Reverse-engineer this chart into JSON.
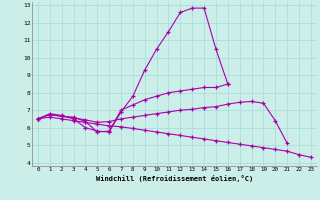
{
  "xlabel": "Windchill (Refroidissement éolien,°C)",
  "background_color": "#cceee8",
  "grid_color": "#aadddd",
  "line_color": "#aa00aa",
  "x_hours": [
    0,
    1,
    2,
    3,
    4,
    5,
    6,
    7,
    8,
    9,
    10,
    11,
    12,
    13,
    14,
    15,
    16,
    17,
    18,
    19,
    20,
    21,
    22,
    23
  ],
  "line1": [
    6.5,
    6.8,
    6.7,
    6.5,
    6.0,
    5.8,
    5.75,
    6.9,
    7.8,
    9.3,
    10.5,
    11.5,
    12.6,
    12.85,
    12.85,
    10.5,
    8.5,
    null,
    null,
    null,
    null,
    null,
    null,
    null
  ],
  "line2": [
    6.5,
    6.75,
    6.65,
    6.6,
    6.35,
    5.75,
    5.8,
    7.0,
    7.3,
    7.6,
    7.8,
    8.0,
    8.1,
    8.2,
    8.3,
    8.3,
    8.5,
    null,
    null,
    null,
    null,
    null,
    null,
    null
  ],
  "line3": [
    6.5,
    6.75,
    6.65,
    6.55,
    6.45,
    6.3,
    6.35,
    6.5,
    6.6,
    6.7,
    6.8,
    6.9,
    7.0,
    7.05,
    7.15,
    7.2,
    7.35,
    7.45,
    7.5,
    7.4,
    6.4,
    5.1,
    null,
    null
  ],
  "line4": [
    6.5,
    6.6,
    6.5,
    6.4,
    6.3,
    6.2,
    6.1,
    6.05,
    5.95,
    5.85,
    5.75,
    5.65,
    5.55,
    5.45,
    5.35,
    5.25,
    5.15,
    5.05,
    4.95,
    4.85,
    4.75,
    4.65,
    4.45,
    4.3
  ],
  "ylim": [
    4,
    13
  ],
  "xlim": [
    0,
    23
  ],
  "yticks": [
    4,
    5,
    6,
    7,
    8,
    9,
    10,
    11,
    12,
    13
  ],
  "xticks": [
    0,
    1,
    2,
    3,
    4,
    5,
    6,
    7,
    8,
    9,
    10,
    11,
    12,
    13,
    14,
    15,
    16,
    17,
    18,
    19,
    20,
    21,
    22,
    23
  ],
  "xtick_labels": [
    "0",
    "1",
    "2",
    "3",
    "4",
    "5",
    "6",
    "7",
    "8",
    "9",
    "10",
    "11",
    "12",
    "13",
    "14",
    "15",
    "16",
    "17",
    "18",
    "19",
    "20",
    "21",
    "22",
    "23"
  ]
}
